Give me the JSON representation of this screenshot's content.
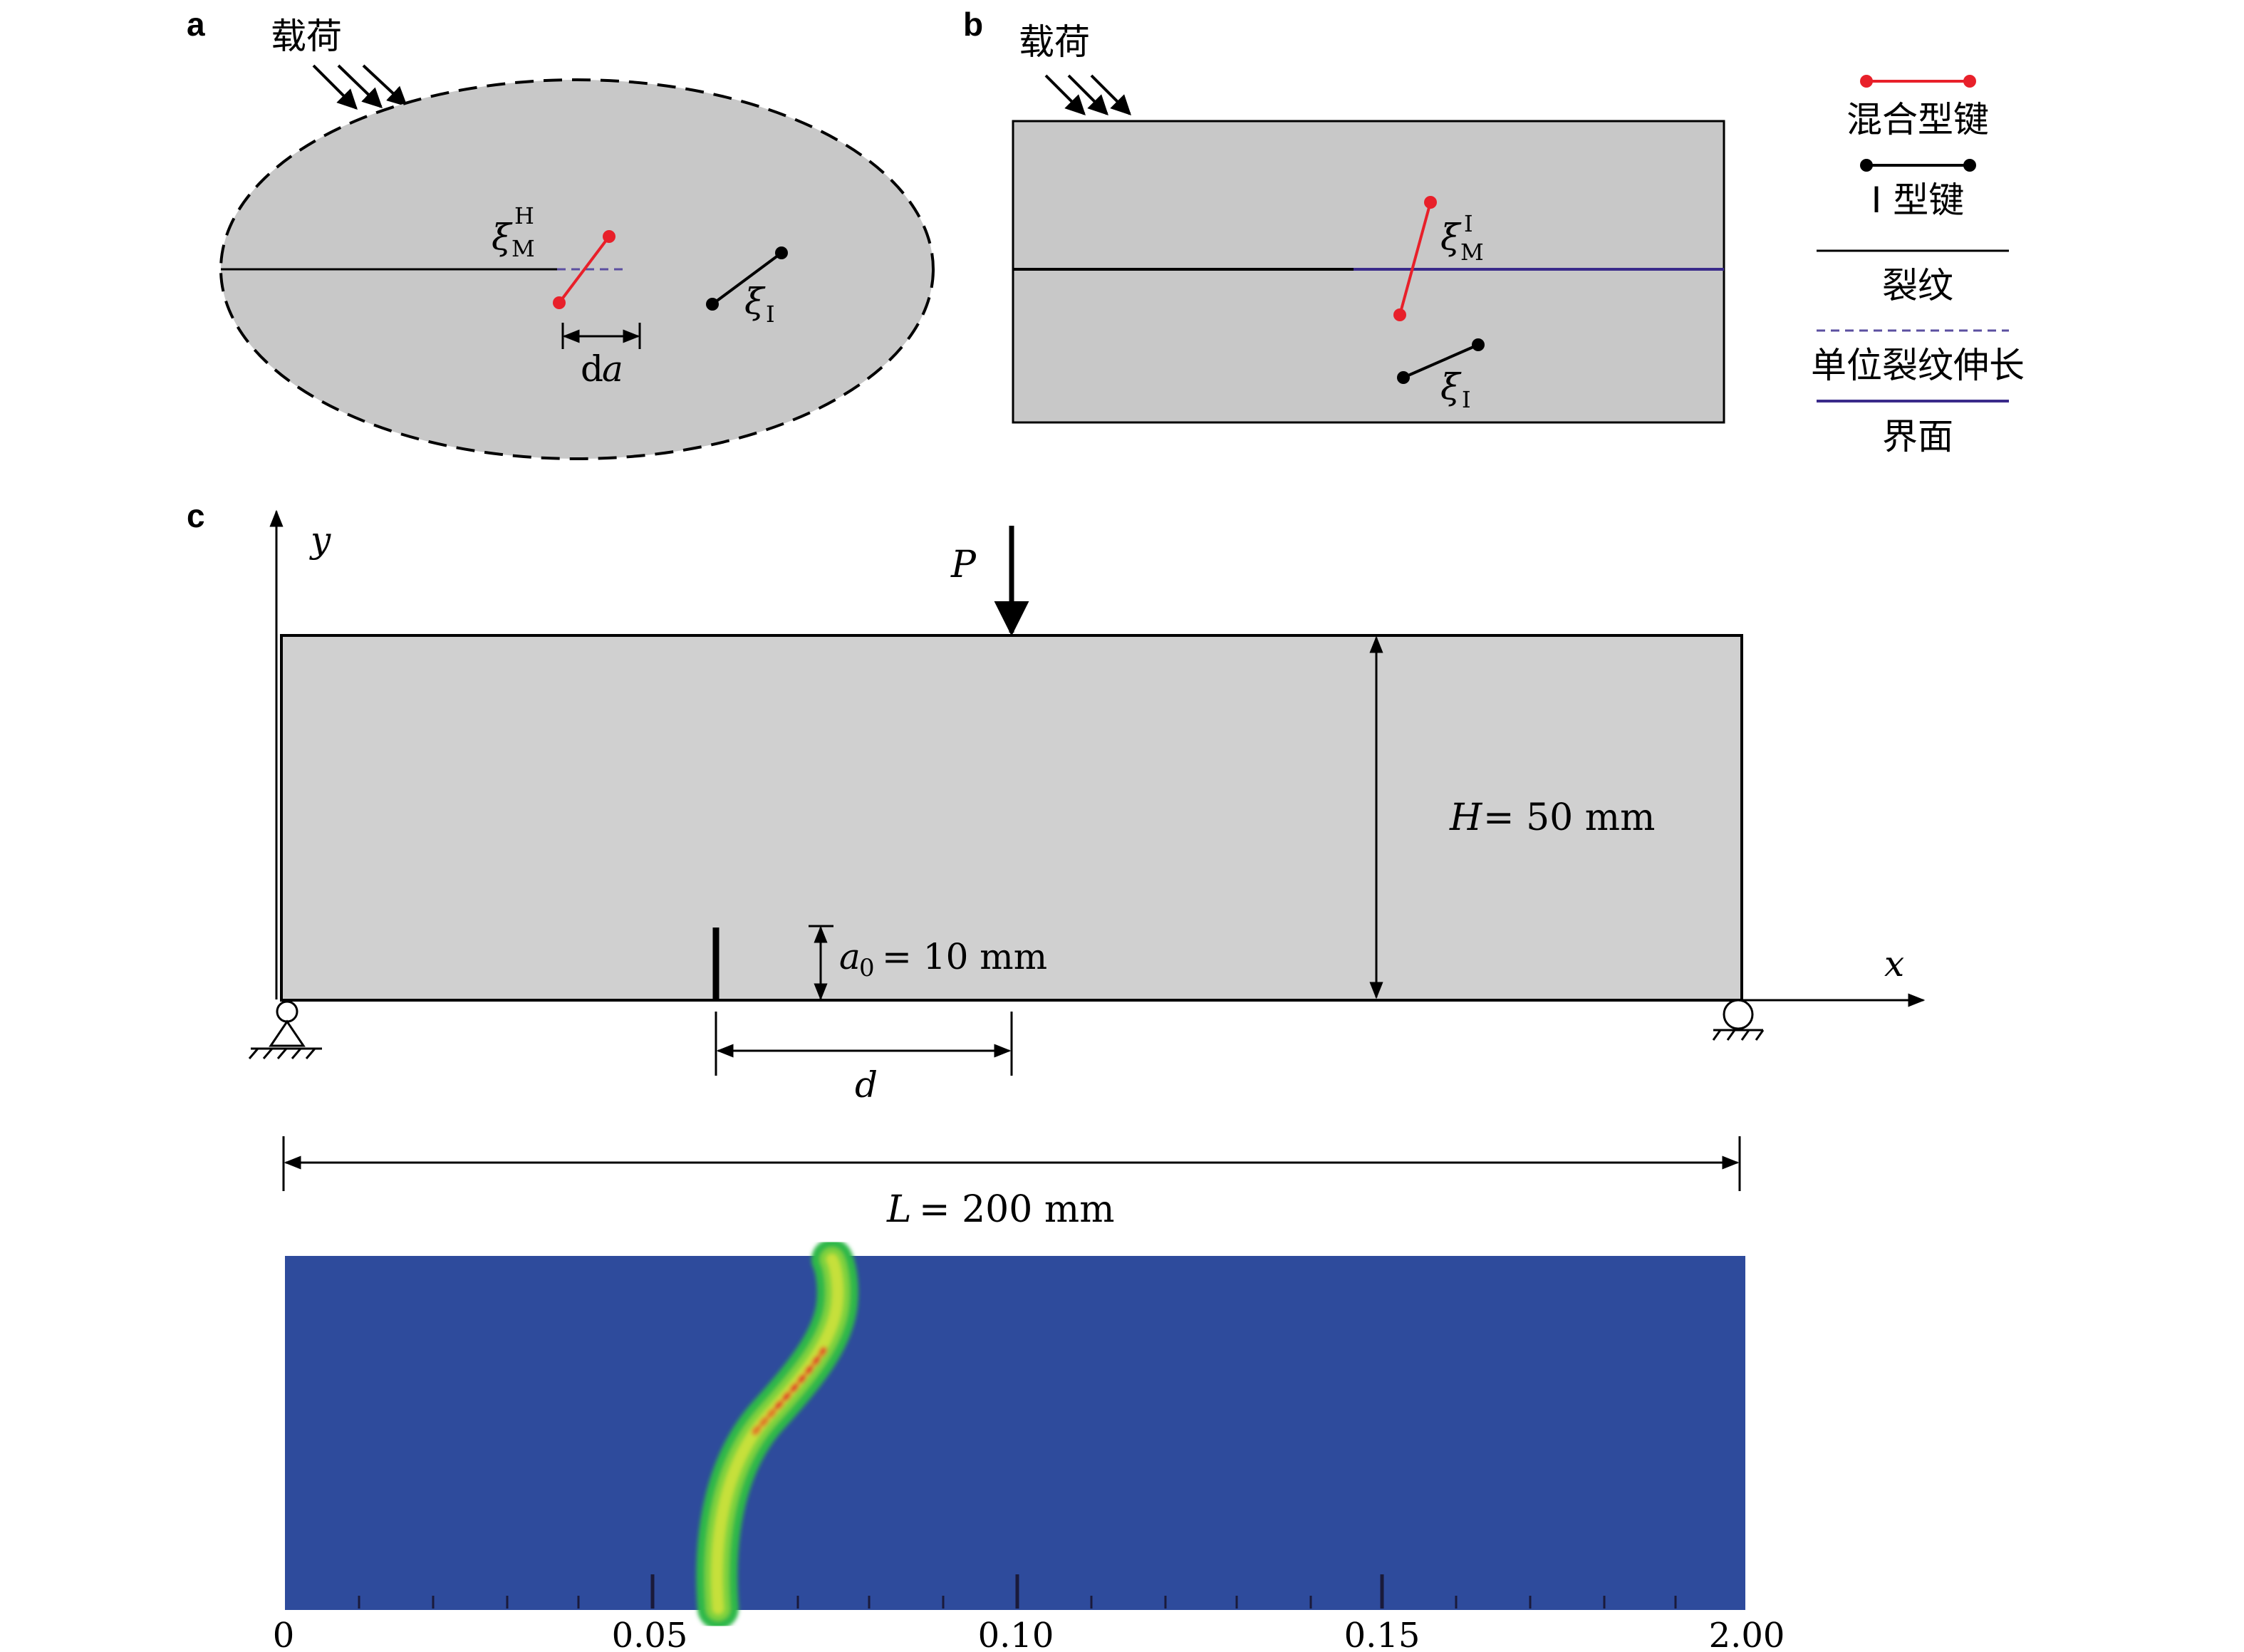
{
  "panel_labels": {
    "a": "a",
    "b": "b",
    "c": "c"
  },
  "panel_a": {
    "load_label": "载荷",
    "bond_mixed_symbol": "ξ",
    "bond_mixed_sub": "M",
    "bond_mixed_sup": "H",
    "bond_I_symbol": "ξ",
    "bond_I_sub": "I",
    "increment_prefix": "d",
    "increment_var": "a"
  },
  "panel_b": {
    "load_label": "载荷",
    "bond_mixed_symbol": "ξ",
    "bond_mixed_sub": "M",
    "bond_mixed_sup": "I",
    "bond_I_symbol": "ξ",
    "bond_I_sub": "I"
  },
  "legend": {
    "mixed_bond": "混合型键",
    "type_I_bond": "I 型键",
    "crack": "裂纹",
    "crack_extension": "单位裂纹伸长",
    "interface": "界面"
  },
  "panel_c": {
    "y_axis": "y",
    "x_axis": "x",
    "load": "P",
    "height_var": "H",
    "height_val": "= 50 mm",
    "notch_var": "a",
    "notch_sub": "0",
    "notch_val": "= 10 mm",
    "offset_var": "d",
    "length_var": "L",
    "length_val": "= 200 mm"
  },
  "damage_plot": {
    "x_ticks": [
      "0",
      "0.05",
      "0.10",
      "0.15",
      "2.00"
    ],
    "colors": {
      "background": "#2e4b9c",
      "crack_outer": "#2fb84a",
      "crack_mid": "#c6e03a",
      "crack_core": "#e03a2a"
    }
  },
  "colors": {
    "mixed_bond": "#e8202a",
    "type_I_bond": "#000000",
    "specimen_fill": "#c8c8c8",
    "beam_fill": "#d0d0d0",
    "extension": "#5b4fa0",
    "interface": "#3a2a8a"
  }
}
